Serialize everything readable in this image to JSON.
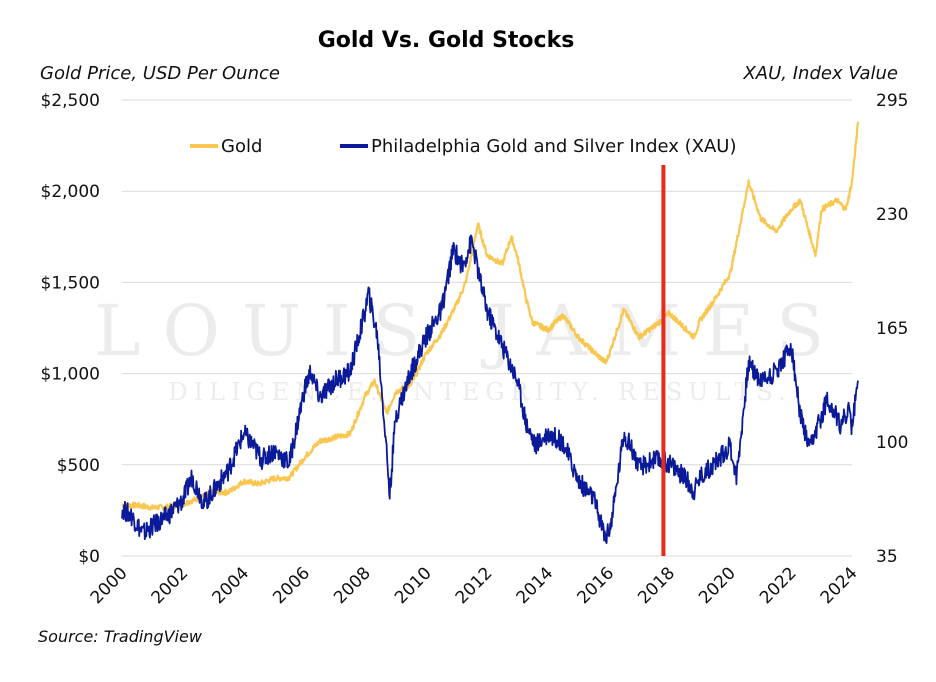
{
  "source": "Source: TradingView",
  "watermark": {
    "line1": "LOUIS JAMES",
    "line2": "DILIGENCE. INTEGRITY. RESULTS."
  },
  "chart_data": {
    "type": "line",
    "title": "Gold Vs. Gold Stocks",
    "ylabel_left": "Gold Price, USD Per Ounce",
    "ylabel_right": "XAU, Index Value",
    "xlim": [
      2000,
      2024
    ],
    "ylim_left": [
      0,
      2500
    ],
    "ylim_right": [
      35,
      295
    ],
    "x_ticks": [
      "2000",
      "2002",
      "2004",
      "2006",
      "2008",
      "2010",
      "2012",
      "2014",
      "2016",
      "2018",
      "2020",
      "2022",
      "2024"
    ],
    "y_ticks_left": [
      "$0",
      "$500",
      "$1,000",
      "$1,500",
      "$2,000",
      "$2,500"
    ],
    "y_ticks_right": [
      "35",
      "100",
      "165",
      "230",
      "295"
    ],
    "grid": true,
    "legend_position": "top",
    "colors": {
      "gold": "#F9C74F",
      "xau": "#0B1A99",
      "marker": "#E8291C"
    },
    "vertical_marker_x": 2017.8,
    "series": [
      {
        "name": "Gold",
        "axis": "left",
        "color": "#F9C74F",
        "points": [
          [
            2000,
            280
          ],
          [
            2000.5,
            278
          ],
          [
            2001,
            265
          ],
          [
            2001.5,
            270
          ],
          [
            2002,
            285
          ],
          [
            2002.5,
            315
          ],
          [
            2003,
            350
          ],
          [
            2003.5,
            350
          ],
          [
            2004,
            410
          ],
          [
            2004.5,
            395
          ],
          [
            2005,
            425
          ],
          [
            2005.5,
            430
          ],
          [
            2006,
            540
          ],
          [
            2006.5,
            630
          ],
          [
            2007,
            650
          ],
          [
            2007.5,
            670
          ],
          [
            2008,
            880
          ],
          [
            2008.3,
            960
          ],
          [
            2008.7,
            780
          ],
          [
            2009,
            900
          ],
          [
            2009.5,
            940
          ],
          [
            2010,
            1110
          ],
          [
            2010.5,
            1220
          ],
          [
            2011,
            1380
          ],
          [
            2011.3,
            1500
          ],
          [
            2011.7,
            1820
          ],
          [
            2012,
            1650
          ],
          [
            2012.5,
            1600
          ],
          [
            2012.8,
            1750
          ],
          [
            2013,
            1640
          ],
          [
            2013.3,
            1400
          ],
          [
            2013.5,
            1280
          ],
          [
            2014,
            1240
          ],
          [
            2014.5,
            1320
          ],
          [
            2015,
            1200
          ],
          [
            2015.5,
            1120
          ],
          [
            2015.9,
            1060
          ],
          [
            2016,
            1100
          ],
          [
            2016.5,
            1350
          ],
          [
            2017,
            1200
          ],
          [
            2017.5,
            1260
          ],
          [
            2018,
            1330
          ],
          [
            2018.5,
            1250
          ],
          [
            2018.8,
            1200
          ],
          [
            2019,
            1290
          ],
          [
            2019.5,
            1410
          ],
          [
            2020,
            1550
          ],
          [
            2020.6,
            2050
          ],
          [
            2021,
            1850
          ],
          [
            2021.5,
            1780
          ],
          [
            2022,
            1900
          ],
          [
            2022.3,
            1950
          ],
          [
            2022.8,
            1650
          ],
          [
            2023,
            1900
          ],
          [
            2023.5,
            1950
          ],
          [
            2023.8,
            1900
          ],
          [
            2024,
            2050
          ],
          [
            2024.2,
            2380
          ]
        ]
      },
      {
        "name": "Philadelphia Gold and Silver Index (XAU)",
        "axis": "right",
        "color": "#0B1A99",
        "points": [
          [
            2000,
            62
          ],
          [
            2000.3,
            58
          ],
          [
            2000.7,
            48
          ],
          [
            2001,
            52
          ],
          [
            2001.5,
            58
          ],
          [
            2002,
            67
          ],
          [
            2002.3,
            80
          ],
          [
            2002.7,
            65
          ],
          [
            2003,
            72
          ],
          [
            2003.5,
            84
          ],
          [
            2004,
            105
          ],
          [
            2004.3,
            98
          ],
          [
            2004.6,
            90
          ],
          [
            2005,
            95
          ],
          [
            2005.5,
            88
          ],
          [
            2006,
            130
          ],
          [
            2006.2,
            140
          ],
          [
            2006.5,
            125
          ],
          [
            2007,
            135
          ],
          [
            2007.5,
            140
          ],
          [
            2008,
            175
          ],
          [
            2008.1,
            185
          ],
          [
            2008.4,
            160
          ],
          [
            2008.7,
            95
          ],
          [
            2008.8,
            70
          ],
          [
            2009,
            115
          ],
          [
            2009.5,
            140
          ],
          [
            2010,
            160
          ],
          [
            2010.5,
            175
          ],
          [
            2010.9,
            210
          ],
          [
            2011.2,
            200
          ],
          [
            2011.5,
            215
          ],
          [
            2011.8,
            190
          ],
          [
            2012,
            175
          ],
          [
            2012.5,
            155
          ],
          [
            2013,
            135
          ],
          [
            2013.3,
            110
          ],
          [
            2013.6,
            98
          ],
          [
            2014,
            105
          ],
          [
            2014.5,
            100
          ],
          [
            2015,
            78
          ],
          [
            2015.5,
            68
          ],
          [
            2015.9,
            45
          ],
          [
            2016.1,
            55
          ],
          [
            2016.5,
            105
          ],
          [
            2016.8,
            95
          ],
          [
            2017,
            85
          ],
          [
            2017.5,
            90
          ],
          [
            2018,
            88
          ],
          [
            2018.5,
            80
          ],
          [
            2018.8,
            72
          ],
          [
            2019,
            80
          ],
          [
            2019.5,
            88
          ],
          [
            2020,
            98
          ],
          [
            2020.2,
            80
          ],
          [
            2020.6,
            145
          ],
          [
            2021,
            135
          ],
          [
            2021.5,
            140
          ],
          [
            2022,
            155
          ],
          [
            2022.3,
            115
          ],
          [
            2022.6,
            95
          ],
          [
            2022.9,
            110
          ],
          [
            2023.2,
            125
          ],
          [
            2023.6,
            110
          ],
          [
            2023.9,
            118
          ],
          [
            2024,
            108
          ],
          [
            2024.2,
            135
          ]
        ]
      }
    ]
  }
}
